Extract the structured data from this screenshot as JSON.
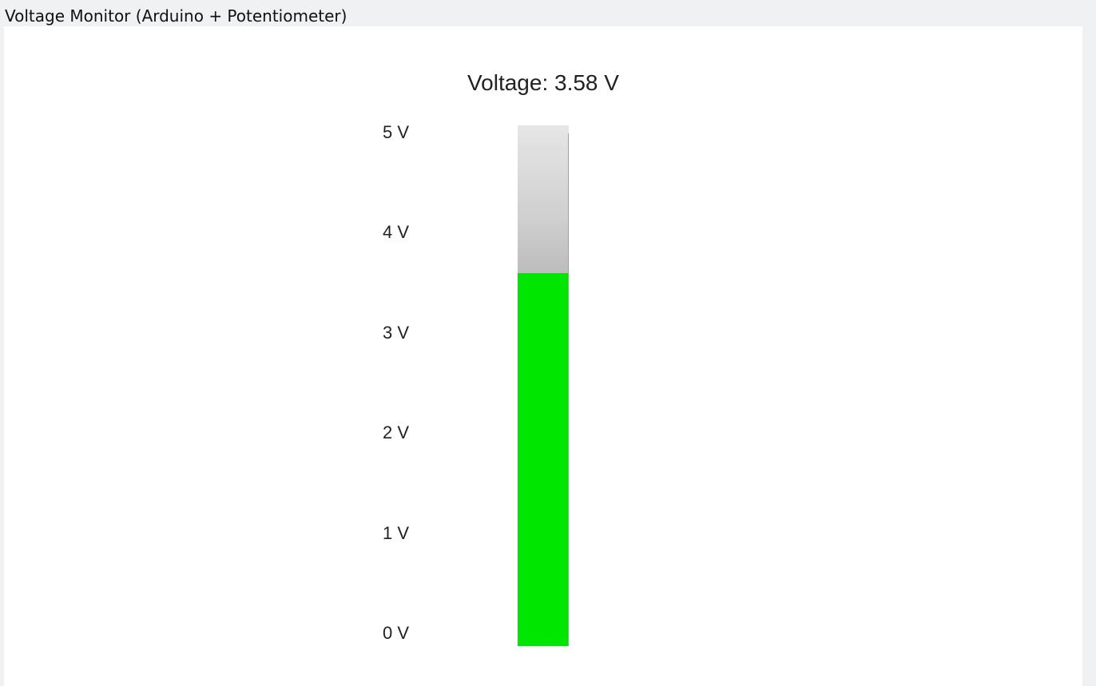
{
  "window": {
    "title": "Voltage Monitor (Arduino + Potentiometer)"
  },
  "readout": {
    "label": "Voltage: 3.58 V",
    "value": 3.58,
    "unit": "V"
  },
  "meter": {
    "min": 0,
    "max": 5,
    "fill_color": "#00e600",
    "ticks": [
      {
        "label": "5 V",
        "value": 5
      },
      {
        "label": "4 V",
        "value": 4
      },
      {
        "label": "3 V",
        "value": 3
      },
      {
        "label": "2 V",
        "value": 2
      },
      {
        "label": "1 V",
        "value": 1
      },
      {
        "label": "0 V",
        "value": 0
      }
    ]
  }
}
